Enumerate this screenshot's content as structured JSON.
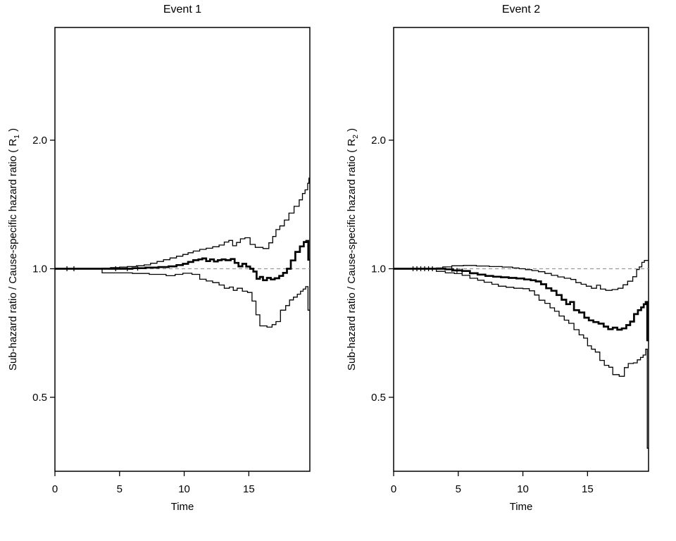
{
  "figure": {
    "background": "#ffffff",
    "curve_color": "#000000",
    "reference_line_color": "#999999",
    "reference_line_style": "dashed"
  },
  "chart_data": [
    {
      "type": "line",
      "step": true,
      "title": "Event 1",
      "xlabel": "Time",
      "ylabel_prefix": "Sub-hazard ratio / Cause-specific hazard ratio ( R",
      "ylabel_sub": "1",
      "ylabel_suffix": " )",
      "y_scale": "log",
      "xlim": [
        0,
        19.72
      ],
      "ylim": [
        0.336,
        3.67
      ],
      "x_ticks": [
        "0",
        "5",
        "10",
        "15"
      ],
      "x_tick_values": [
        0,
        5,
        10,
        15
      ],
      "y_ticks": [
        "2.0",
        "1.0",
        "0.5"
      ],
      "y_tick_values": [
        2.0,
        1.0,
        0.5
      ],
      "reference_line": 1.0,
      "grid": false,
      "legend": null,
      "series": [
        {
          "name": "estimate",
          "style": "thick",
          "points": [
            [
              0,
              1.0
            ],
            [
              6.0,
              1.003
            ],
            [
              7.0,
              1.006
            ],
            [
              8.0,
              1.009
            ],
            [
              8.8,
              1.013
            ],
            [
              9.4,
              1.02
            ],
            [
              9.9,
              1.027
            ],
            [
              10.3,
              1.037
            ],
            [
              10.7,
              1.047
            ],
            [
              11.1,
              1.052
            ],
            [
              11.4,
              1.057
            ],
            [
              11.7,
              1.042
            ],
            [
              12.0,
              1.052
            ],
            [
              12.3,
              1.04
            ],
            [
              12.6,
              1.047
            ],
            [
              12.9,
              1.052
            ],
            [
              13.2,
              1.047
            ],
            [
              13.6,
              1.054
            ],
            [
              13.9,
              1.032
            ],
            [
              14.2,
              1.013
            ],
            [
              14.5,
              1.027
            ],
            [
              14.8,
              1.012
            ],
            [
              15.1,
              1.0
            ],
            [
              15.35,
              0.985
            ],
            [
              15.6,
              0.947
            ],
            [
              15.85,
              0.957
            ],
            [
              16.1,
              0.94
            ],
            [
              16.4,
              0.952
            ],
            [
              16.7,
              0.944
            ],
            [
              17.0,
              0.95
            ],
            [
              17.35,
              0.962
            ],
            [
              17.65,
              0.978
            ],
            [
              17.95,
              1.0
            ],
            [
              18.25,
              1.046
            ],
            [
              18.6,
              1.095
            ],
            [
              18.95,
              1.128
            ],
            [
              19.25,
              1.155
            ],
            [
              19.45,
              1.162
            ],
            [
              19.6,
              1.05
            ]
          ]
        },
        {
          "name": "upper-ci",
          "style": "thin",
          "points": [
            [
              0,
              1.0
            ],
            [
              3.65,
              1.003
            ],
            [
              4.3,
              1.006
            ],
            [
              5.0,
              1.009
            ],
            [
              5.6,
              1.012
            ],
            [
              6.3,
              1.016
            ],
            [
              6.9,
              1.021
            ],
            [
              7.4,
              1.03
            ],
            [
              7.9,
              1.04
            ],
            [
              8.4,
              1.05
            ],
            [
              8.9,
              1.06
            ],
            [
              9.4,
              1.07
            ],
            [
              9.9,
              1.08
            ],
            [
              10.3,
              1.09
            ],
            [
              10.7,
              1.1
            ],
            [
              11.2,
              1.11
            ],
            [
              11.7,
              1.117
            ],
            [
              12.2,
              1.126
            ],
            [
              12.7,
              1.136
            ],
            [
              13.1,
              1.155
            ],
            [
              13.45,
              1.165
            ],
            [
              13.75,
              1.132
            ],
            [
              14.05,
              1.152
            ],
            [
              14.35,
              1.175
            ],
            [
              14.7,
              1.182
            ],
            [
              15.1,
              1.14
            ],
            [
              15.5,
              1.122
            ],
            [
              16.1,
              1.115
            ],
            [
              16.55,
              1.15
            ],
            [
              16.85,
              1.19
            ],
            [
              17.1,
              1.235
            ],
            [
              17.4,
              1.26
            ],
            [
              17.75,
              1.3
            ],
            [
              18.1,
              1.35
            ],
            [
              18.5,
              1.4
            ],
            [
              18.9,
              1.45
            ],
            [
              19.15,
              1.5
            ],
            [
              19.35,
              1.53
            ],
            [
              19.55,
              1.585
            ],
            [
              19.65,
              1.63
            ]
          ]
        },
        {
          "name": "lower-ci",
          "style": "thin",
          "points": [
            [
              0,
              1.0
            ],
            [
              3.65,
              0.978
            ],
            [
              6.0,
              0.975
            ],
            [
              7.3,
              0.97
            ],
            [
              8.6,
              0.963
            ],
            [
              9.3,
              0.97
            ],
            [
              9.9,
              0.976
            ],
            [
              10.6,
              0.97
            ],
            [
              11.2,
              0.945
            ],
            [
              11.7,
              0.936
            ],
            [
              12.2,
              0.928
            ],
            [
              12.7,
              0.916
            ],
            [
              13.1,
              0.9
            ],
            [
              13.5,
              0.906
            ],
            [
              13.8,
              0.89
            ],
            [
              14.1,
              0.9
            ],
            [
              14.5,
              0.886
            ],
            [
              14.9,
              0.88
            ],
            [
              15.25,
              0.84
            ],
            [
              15.55,
              0.78
            ],
            [
              15.85,
              0.735
            ],
            [
              16.4,
              0.73
            ],
            [
              16.8,
              0.74
            ],
            [
              17.1,
              0.752
            ],
            [
              17.45,
              0.8
            ],
            [
              17.85,
              0.82
            ],
            [
              18.15,
              0.845
            ],
            [
              18.45,
              0.858
            ],
            [
              18.75,
              0.872
            ],
            [
              19.0,
              0.886
            ],
            [
              19.2,
              0.896
            ],
            [
              19.4,
              0.908
            ],
            [
              19.58,
              0.8
            ]
          ]
        }
      ],
      "censor_ticks": [
        0.93,
        1.47,
        4.7,
        5.6,
        6.4
      ]
    },
    {
      "type": "line",
      "step": true,
      "title": "Event 2",
      "xlabel": "Time",
      "ylabel_prefix": "Sub-hazard ratio / Cause-specific hazard ratio ( R",
      "ylabel_sub": "2",
      "ylabel_suffix": " )",
      "y_scale": "log",
      "xlim": [
        0,
        19.72
      ],
      "ylim": [
        0.336,
        3.67
      ],
      "x_ticks": [
        "0",
        "5",
        "10",
        "15"
      ],
      "x_tick_values": [
        0,
        5,
        10,
        15
      ],
      "y_ticks": [
        "2.0",
        "1.0",
        "0.5"
      ],
      "y_tick_values": [
        2.0,
        1.0,
        0.5
      ],
      "reference_line": 1.0,
      "grid": false,
      "legend": null,
      "series": [
        {
          "name": "estimate",
          "style": "thick",
          "points": [
            [
              0,
              1.0
            ],
            [
              4.0,
              0.997
            ],
            [
              4.6,
              0.991
            ],
            [
              5.3,
              0.988
            ],
            [
              5.9,
              0.976
            ],
            [
              6.5,
              0.969
            ],
            [
              7.1,
              0.962
            ],
            [
              7.7,
              0.958
            ],
            [
              8.3,
              0.955
            ],
            [
              8.9,
              0.952
            ],
            [
              9.5,
              0.949
            ],
            [
              10.1,
              0.944
            ],
            [
              10.6,
              0.94
            ],
            [
              11.0,
              0.934
            ],
            [
              11.4,
              0.92
            ],
            [
              11.8,
              0.9
            ],
            [
              12.2,
              0.888
            ],
            [
              12.6,
              0.868
            ],
            [
              13.0,
              0.846
            ],
            [
              13.35,
              0.826
            ],
            [
              13.65,
              0.836
            ],
            [
              13.95,
              0.8
            ],
            [
              14.35,
              0.79
            ],
            [
              14.75,
              0.768
            ],
            [
              15.1,
              0.757
            ],
            [
              15.45,
              0.75
            ],
            [
              15.85,
              0.744
            ],
            [
              16.25,
              0.732
            ],
            [
              16.6,
              0.722
            ],
            [
              16.95,
              0.728
            ],
            [
              17.3,
              0.72
            ],
            [
              17.65,
              0.725
            ],
            [
              18.0,
              0.738
            ],
            [
              18.3,
              0.752
            ],
            [
              18.6,
              0.783
            ],
            [
              18.9,
              0.8
            ],
            [
              19.15,
              0.812
            ],
            [
              19.35,
              0.826
            ],
            [
              19.5,
              0.836
            ],
            [
              19.62,
              0.68
            ]
          ]
        },
        {
          "name": "upper-ci",
          "style": "thin",
          "points": [
            [
              0,
              1.0
            ],
            [
              3.3,
              1.004
            ],
            [
              3.8,
              1.01
            ],
            [
              4.5,
              1.016
            ],
            [
              5.4,
              1.018
            ],
            [
              6.4,
              1.015
            ],
            [
              7.4,
              1.012
            ],
            [
              8.4,
              1.009
            ],
            [
              9.2,
              1.004
            ],
            [
              9.7,
              1.0
            ],
            [
              10.2,
              0.995
            ],
            [
              10.7,
              0.99
            ],
            [
              11.2,
              0.984
            ],
            [
              11.7,
              0.975
            ],
            [
              12.2,
              0.965
            ],
            [
              12.7,
              0.957
            ],
            [
              13.2,
              0.95
            ],
            [
              13.7,
              0.944
            ],
            [
              14.1,
              0.928
            ],
            [
              14.5,
              0.92
            ],
            [
              14.9,
              0.91
            ],
            [
              15.3,
              0.9
            ],
            [
              15.7,
              0.915
            ],
            [
              16.0,
              0.896
            ],
            [
              16.4,
              0.89
            ],
            [
              16.9,
              0.894
            ],
            [
              17.35,
              0.9
            ],
            [
              17.75,
              0.917
            ],
            [
              18.1,
              0.935
            ],
            [
              18.5,
              0.958
            ],
            [
              18.8,
              0.996
            ],
            [
              19.0,
              1.01
            ],
            [
              19.2,
              1.035
            ],
            [
              19.4,
              1.046
            ]
          ]
        },
        {
          "name": "lower-ci",
          "style": "thin",
          "points": [
            [
              0,
              1.0
            ],
            [
              3.3,
              0.986
            ],
            [
              4.0,
              0.978
            ],
            [
              4.7,
              0.974
            ],
            [
              5.3,
              0.965
            ],
            [
              5.9,
              0.95
            ],
            [
              6.5,
              0.94
            ],
            [
              7.0,
              0.93
            ],
            [
              7.6,
              0.92
            ],
            [
              8.1,
              0.91
            ],
            [
              8.7,
              0.905
            ],
            [
              9.3,
              0.9
            ],
            [
              10.0,
              0.898
            ],
            [
              10.5,
              0.888
            ],
            [
              10.9,
              0.868
            ],
            [
              11.25,
              0.844
            ],
            [
              11.7,
              0.83
            ],
            [
              12.1,
              0.81
            ],
            [
              12.45,
              0.795
            ],
            [
              12.8,
              0.775
            ],
            [
              13.2,
              0.758
            ],
            [
              13.55,
              0.745
            ],
            [
              13.95,
              0.72
            ],
            [
              14.35,
              0.7
            ],
            [
              14.7,
              0.688
            ],
            [
              15.0,
              0.66
            ],
            [
              15.3,
              0.648
            ],
            [
              15.6,
              0.638
            ],
            [
              15.95,
              0.61
            ],
            [
              16.3,
              0.594
            ],
            [
              16.65,
              0.588
            ],
            [
              16.95,
              0.565
            ],
            [
              17.45,
              0.56
            ],
            [
              17.85,
              0.587
            ],
            [
              18.15,
              0.6
            ],
            [
              18.55,
              0.602
            ],
            [
              18.85,
              0.612
            ],
            [
              19.1,
              0.62
            ],
            [
              19.3,
              0.628
            ],
            [
              19.5,
              0.648
            ],
            [
              19.62,
              0.38
            ]
          ]
        }
      ],
      "censor_ticks": [
        1.5,
        1.8,
        2.1,
        2.4,
        2.7,
        3.0,
        4.5,
        4.9,
        5.3
      ]
    }
  ]
}
